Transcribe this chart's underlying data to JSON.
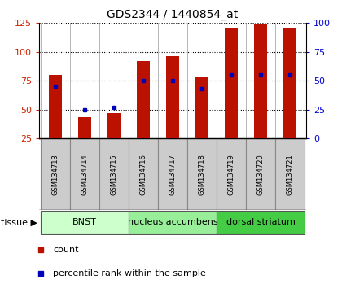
{
  "title": "GDS2344 / 1440854_at",
  "samples": [
    "GSM134713",
    "GSM134714",
    "GSM134715",
    "GSM134716",
    "GSM134717",
    "GSM134718",
    "GSM134719",
    "GSM134720",
    "GSM134721"
  ],
  "counts": [
    80,
    43,
    47,
    92,
    96,
    78,
    121,
    124,
    121
  ],
  "percentiles": [
    45,
    25,
    27,
    50,
    50,
    43,
    55,
    55,
    55
  ],
  "groups": [
    {
      "label": "BNST",
      "indices": [
        0,
        1,
        2
      ],
      "color": "#ccffcc"
    },
    {
      "label": "nucleus accumbens",
      "indices": [
        3,
        4,
        5
      ],
      "color": "#99ee99"
    },
    {
      "label": "dorsal striatum",
      "indices": [
        6,
        7,
        8
      ],
      "color": "#44cc44"
    }
  ],
  "bar_color": "#bb1100",
  "dot_color": "#0000bb",
  "bar_width": 0.45,
  "ylim_left": [
    25,
    125
  ],
  "yticks_left": [
    25,
    50,
    75,
    100,
    125
  ],
  "ylim_right": [
    0,
    100
  ],
  "yticks_right": [
    0,
    25,
    50,
    75,
    100
  ],
  "label_color_left": "#cc2200",
  "label_color_right": "#0000cc",
  "legend_count": "count",
  "legend_percentile": "percentile rank within the sample",
  "tissue_label": "tissue",
  "sample_box_color": "#cccccc",
  "sample_box_edge": "#888888"
}
